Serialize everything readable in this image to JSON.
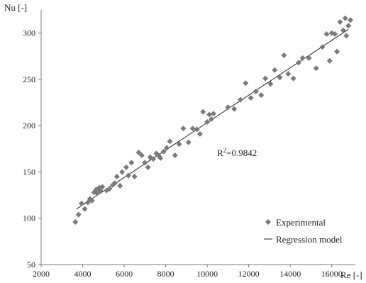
{
  "chart_data": {
    "type": "scatter",
    "title": "",
    "xlabel": "Re [-]",
    "ylabel": "Nu [-]",
    "xlim": [
      2000,
      17000
    ],
    "ylim": [
      50,
      325
    ],
    "x_ticks": [
      "2000",
      "4000",
      "6000",
      "8000",
      "10000",
      "12000",
      "14000",
      "16000"
    ],
    "y_ticks": [
      "50",
      "100",
      "150",
      "200",
      "250",
      "300"
    ],
    "x_tick_values": [
      2000,
      4000,
      6000,
      8000,
      10000,
      12000,
      14000,
      16000
    ],
    "y_tick_values": [
      50,
      100,
      150,
      200,
      250,
      300
    ],
    "grid": false,
    "legend_position": "bottom-right",
    "annotation": {
      "base": "R",
      "sup": "2",
      "rest": "=0.9842"
    },
    "series": [
      {
        "name": "Experimental",
        "marker": "diamond",
        "color": "#7a7a7a",
        "points": [
          [
            3650,
            96
          ],
          [
            3800,
            104
          ],
          [
            3950,
            116
          ],
          [
            4100,
            110
          ],
          [
            4250,
            117
          ],
          [
            4350,
            121
          ],
          [
            4450,
            119
          ],
          [
            4550,
            128
          ],
          [
            4650,
            131
          ],
          [
            4700,
            127
          ],
          [
            4800,
            133
          ],
          [
            4850,
            130
          ],
          [
            4950,
            134
          ],
          [
            5150,
            130
          ],
          [
            5300,
            132
          ],
          [
            5450,
            136
          ],
          [
            5550,
            138
          ],
          [
            5650,
            145
          ],
          [
            5800,
            135
          ],
          [
            5900,
            150
          ],
          [
            6100,
            155
          ],
          [
            6200,
            146
          ],
          [
            6350,
            160
          ],
          [
            6500,
            145
          ],
          [
            6700,
            171
          ],
          [
            6850,
            168
          ],
          [
            7000,
            160
          ],
          [
            7150,
            155
          ],
          [
            7250,
            166
          ],
          [
            7400,
            164
          ],
          [
            7550,
            170
          ],
          [
            7650,
            168
          ],
          [
            7750,
            165
          ],
          [
            7900,
            172
          ],
          [
            8050,
            176
          ],
          [
            8200,
            183
          ],
          [
            8450,
            168
          ],
          [
            8650,
            180
          ],
          [
            8850,
            197
          ],
          [
            9100,
            182
          ],
          [
            9300,
            197
          ],
          [
            9500,
            196
          ],
          [
            9650,
            191
          ],
          [
            9800,
            215
          ],
          [
            10000,
            204
          ],
          [
            10100,
            212
          ],
          [
            10200,
            207
          ],
          [
            10300,
            213
          ],
          [
            11000,
            220
          ],
          [
            11300,
            218
          ],
          [
            11600,
            228
          ],
          [
            11850,
            246
          ],
          [
            12100,
            230
          ],
          [
            12350,
            237
          ],
          [
            12600,
            233
          ],
          [
            12800,
            251
          ],
          [
            13050,
            245
          ],
          [
            13250,
            260
          ],
          [
            13500,
            252
          ],
          [
            13700,
            276
          ],
          [
            13900,
            256
          ],
          [
            14150,
            251
          ],
          [
            14400,
            268
          ],
          [
            14600,
            273
          ],
          [
            14900,
            273
          ],
          [
            15250,
            262
          ],
          [
            15550,
            285
          ],
          [
            15750,
            299
          ],
          [
            15900,
            270
          ],
          [
            16000,
            300
          ],
          [
            16150,
            299
          ],
          [
            16250,
            280
          ],
          [
            16400,
            312
          ],
          [
            16550,
            303
          ],
          [
            16650,
            316
          ],
          [
            16700,
            297
          ],
          [
            16800,
            308
          ],
          [
            16900,
            314
          ]
        ]
      },
      {
        "name": "Regression model",
        "type": "line",
        "color": "#222222",
        "points": [
          [
            3700,
            110
          ],
          [
            16800,
            304
          ]
        ]
      }
    ]
  }
}
